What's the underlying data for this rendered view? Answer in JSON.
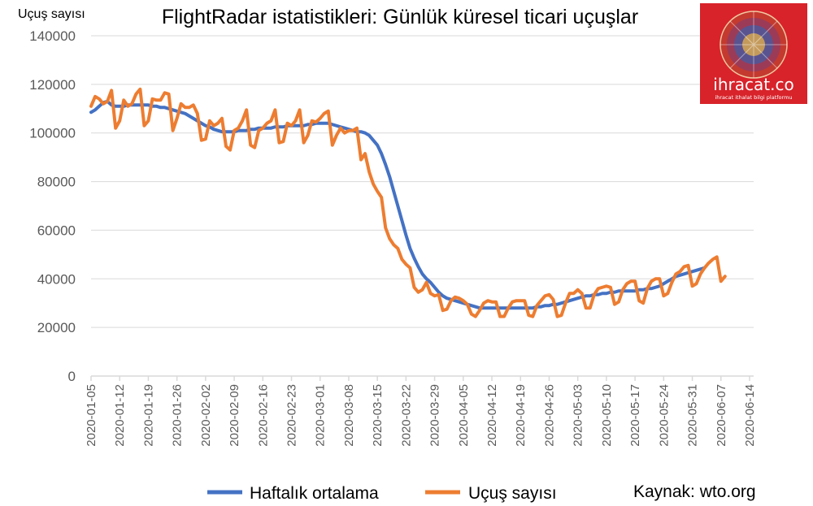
{
  "colors": {
    "avg": "#4472c4",
    "daily": "#ed7d31",
    "grid": "#d9d9d9",
    "logo_bg": "#d8232a"
  },
  "logo": {
    "brand": "ihracat.co",
    "tagline": "ihracat ithalat bilgi platformu",
    "icon": "globe-flags-icon"
  },
  "source_label": "Kaynak: wto.org",
  "chart_data": {
    "type": "line",
    "title": "FlightRadar istatistikleri: Günlük küresel ticari uçuşlar",
    "ylabel": "Uçuş sayısı",
    "xlabel": "",
    "ylim": [
      0,
      140000
    ],
    "yticks": [
      0,
      20000,
      40000,
      60000,
      80000,
      100000,
      120000,
      140000
    ],
    "x_start": "2020-01-05",
    "x_end": "2020-06-15",
    "x_ticks": [
      "2020-01-05",
      "2020-01-12",
      "2020-01-19",
      "2020-01-26",
      "2020-02-02",
      "2020-02-09",
      "2020-02-16",
      "2020-02-23",
      "2020-03-01",
      "2020-03-08",
      "2020-03-15",
      "2020-03-22",
      "2020-03-29",
      "2020-04-05",
      "2020-04-12",
      "2020-04-19",
      "2020-04-26",
      "2020-05-03",
      "2020-05-10",
      "2020-05-17",
      "2020-05-24",
      "2020-05-31",
      "2020-06-07",
      "2020-06-14"
    ],
    "grid": "horizontal",
    "legend_position": "bottom",
    "series": [
      {
        "name": "Haftalık ortalama",
        "values": [
          108500,
          109500,
          111000,
          112500,
          113000,
          111500,
          111000,
          111000,
          111000,
          111500,
          111500,
          111500,
          111500,
          111500,
          111500,
          111000,
          111000,
          110500,
          110500,
          110000,
          109500,
          109000,
          108500,
          108000,
          107000,
          106000,
          105000,
          104000,
          103000,
          102500,
          101500,
          101000,
          100500,
          100500,
          100500,
          100500,
          101000,
          101000,
          101000,
          101500,
          101500,
          102000,
          102000,
          102000,
          102000,
          102500,
          102500,
          102500,
          103000,
          103000,
          103000,
          103000,
          103000,
          103500,
          103500,
          104000,
          104000,
          104000,
          104000,
          103500,
          103000,
          102500,
          102000,
          101500,
          101000,
          100500,
          100500,
          100000,
          99000,
          97000,
          95000,
          91500,
          87000,
          82000,
          76000,
          70000,
          64000,
          58000,
          52500,
          48500,
          45000,
          42000,
          40000,
          38500,
          36500,
          34500,
          33000,
          32000,
          31500,
          31000,
          30500,
          30000,
          29500,
          29000,
          28500,
          28000,
          28000,
          28000,
          28000,
          28000,
          28000,
          28000,
          28000,
          28000,
          28000,
          28000,
          28000,
          28000,
          28000,
          28500,
          28500,
          29000,
          29000,
          29500,
          29500,
          30000,
          30500,
          31000,
          31500,
          32000,
          32500,
          33000,
          33000,
          33500,
          33500,
          34000,
          34000,
          34500,
          34500,
          35000,
          35000,
          35000,
          35000,
          35000,
          35500,
          35500,
          36000,
          36000,
          36500,
          37000,
          38000,
          39000,
          40000,
          41000,
          41500,
          42000,
          42500,
          43000,
          43500,
          44000,
          44500
        ]
      },
      {
        "name": "Uçuş sayısı",
        "values": [
          111000,
          115000,
          114000,
          112000,
          113000,
          117500,
          102000,
          105000,
          113500,
          111000,
          112000,
          116000,
          118000,
          103000,
          105000,
          114000,
          113500,
          113500,
          116500,
          116000,
          101000,
          106000,
          112000,
          110500,
          110500,
          111500,
          108000,
          97000,
          97500,
          105000,
          103000,
          104000,
          106000,
          94500,
          93000,
          101000,
          102000,
          105000,
          109500,
          95000,
          94000,
          101000,
          102000,
          104000,
          105000,
          109500,
          96000,
          96500,
          104000,
          103000,
          105000,
          109500,
          96000,
          99000,
          105000,
          104500,
          106000,
          108000,
          109000,
          95000,
          99000,
          102000,
          100000,
          101000,
          101000,
          102000,
          89000,
          91500,
          84000,
          79000,
          76000,
          73500,
          61000,
          56500,
          54000,
          52500,
          48000,
          46000,
          44500,
          36500,
          34500,
          35500,
          38500,
          34000,
          33000,
          33500,
          27000,
          27500,
          31000,
          32500,
          32000,
          31000,
          29500,
          25500,
          24500,
          27000,
          30000,
          31000,
          30500,
          30500,
          24500,
          24500,
          28000,
          30500,
          31000,
          31000,
          31000,
          25000,
          24500,
          29000,
          31000,
          33000,
          33500,
          31500,
          24500,
          25000,
          30000,
          34000,
          34000,
          35500,
          34000,
          28000,
          28000,
          33500,
          36000,
          36500,
          37000,
          36500,
          29500,
          30500,
          35500,
          38000,
          39000,
          39000,
          31000,
          30000,
          36000,
          39000,
          40000,
          40000,
          33000,
          34000,
          38500,
          42000,
          43000,
          45000,
          45500,
          37000,
          38000,
          42000,
          44500,
          46500,
          48000,
          49000,
          39000,
          41000
        ]
      }
    ]
  }
}
